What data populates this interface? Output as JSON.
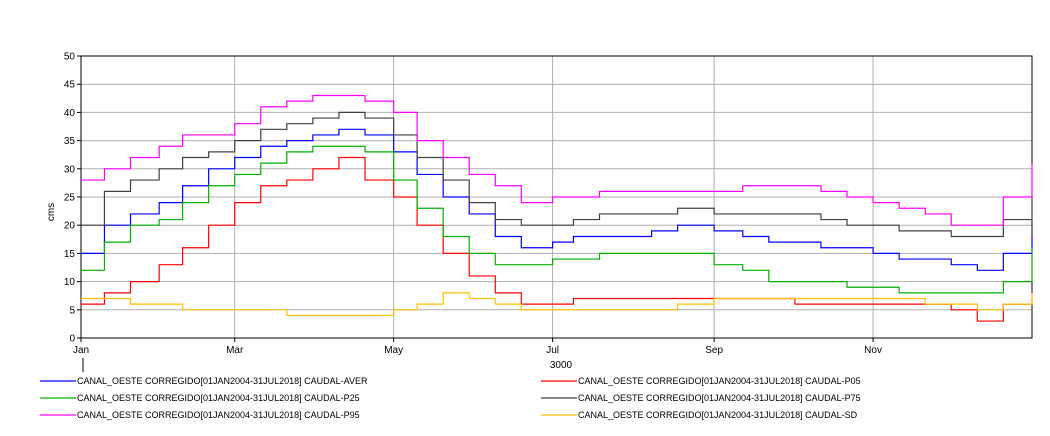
{
  "chart_data": {
    "type": "line",
    "ylabel": "cms",
    "xlabel": "",
    "year_label": "3000",
    "ylim": [
      0,
      50
    ],
    "yticks": [
      0,
      5,
      10,
      15,
      20,
      25,
      30,
      35,
      40,
      45,
      50
    ],
    "xlim": [
      1,
      366
    ],
    "xticks": [
      {
        "label": "Jan",
        "day": 1
      },
      {
        "label": "Mar",
        "day": 60
      },
      {
        "label": "May",
        "day": 121
      },
      {
        "label": "Jul",
        "day": 182
      },
      {
        "label": "Sep",
        "day": 244
      },
      {
        "label": "Nov",
        "day": 305
      }
    ],
    "grid": true,
    "legend_position": "bottom",
    "series": [
      {
        "name": "CANAL_OESTE CORREGIDO[01JAN2004-31JUL2018] CAUDAL-AVER",
        "color": "#0000ff",
        "x": [
          1,
          10,
          20,
          31,
          40,
          50,
          60,
          70,
          80,
          90,
          100,
          110,
          121,
          130,
          140,
          150,
          160,
          170,
          182,
          190,
          200,
          210,
          220,
          230,
          244,
          255,
          265,
          275,
          285,
          295,
          305,
          315,
          325,
          335,
          345,
          355,
          366
        ],
        "y": [
          15,
          20,
          22,
          24,
          27,
          30,
          32,
          34,
          35,
          36,
          37,
          36,
          33,
          29,
          25,
          22,
          18,
          16,
          17,
          18,
          18,
          18,
          19,
          20,
          19,
          18,
          17,
          17,
          16,
          16,
          15,
          14,
          14,
          13,
          12,
          15,
          18
        ]
      },
      {
        "name": "CANAL_OESTE CORREGIDO[01JAN2004-31JUL2018] CAUDAL-P05",
        "color": "#ff0000",
        "x": [
          1,
          10,
          20,
          31,
          40,
          50,
          60,
          70,
          80,
          90,
          100,
          110,
          121,
          130,
          140,
          150,
          160,
          170,
          182,
          190,
          200,
          210,
          220,
          230,
          244,
          255,
          265,
          275,
          285,
          295,
          305,
          315,
          325,
          335,
          345,
          355,
          366
        ],
        "y": [
          6,
          8,
          10,
          13,
          16,
          20,
          24,
          27,
          28,
          30,
          32,
          28,
          25,
          20,
          15,
          11,
          8,
          6,
          6,
          7,
          7,
          7,
          7,
          7,
          7,
          7,
          7,
          6,
          6,
          6,
          6,
          6,
          6,
          5,
          3,
          6,
          7
        ]
      },
      {
        "name": "CANAL_OESTE CORREGIDO[01JAN2004-31JUL2018] CAUDAL-P25",
        "color": "#00b000",
        "x": [
          1,
          10,
          20,
          31,
          40,
          50,
          60,
          70,
          80,
          90,
          100,
          110,
          121,
          130,
          140,
          150,
          160,
          170,
          182,
          190,
          200,
          210,
          220,
          230,
          244,
          255,
          265,
          275,
          285,
          295,
          305,
          315,
          325,
          335,
          345,
          355,
          366
        ],
        "y": [
          12,
          17,
          20,
          21,
          24,
          27,
          29,
          31,
          33,
          34,
          34,
          33,
          28,
          23,
          18,
          15,
          13,
          13,
          14,
          14,
          15,
          15,
          15,
          15,
          13,
          12,
          10,
          10,
          10,
          9,
          9,
          8,
          8,
          8,
          8,
          10,
          16
        ]
      },
      {
        "name": "CANAL_OESTE CORREGIDO[01JAN2004-31JUL2018] CAUDAL-P75",
        "color": "#404040",
        "x": [
          1,
          10,
          20,
          31,
          40,
          50,
          60,
          70,
          80,
          90,
          100,
          110,
          121,
          130,
          140,
          150,
          160,
          170,
          182,
          190,
          200,
          210,
          220,
          230,
          244,
          255,
          265,
          275,
          285,
          295,
          305,
          315,
          325,
          335,
          345,
          355,
          366
        ],
        "y": [
          20,
          26,
          28,
          30,
          32,
          33,
          35,
          37,
          38,
          39,
          40,
          39,
          36,
          32,
          28,
          24,
          21,
          20,
          20,
          21,
          22,
          22,
          22,
          23,
          22,
          22,
          22,
          22,
          21,
          20,
          20,
          19,
          19,
          18,
          18,
          21,
          25
        ]
      },
      {
        "name": "CANAL_OESTE CORREGIDO[01JAN2004-31JUL2018] CAUDAL-P95",
        "color": "#ff00ff",
        "x": [
          1,
          10,
          20,
          31,
          40,
          50,
          60,
          70,
          80,
          90,
          100,
          110,
          121,
          130,
          140,
          150,
          160,
          170,
          182,
          190,
          200,
          210,
          220,
          230,
          244,
          255,
          265,
          275,
          285,
          295,
          305,
          315,
          325,
          335,
          345,
          355,
          366
        ],
        "y": [
          28,
          30,
          32,
          34,
          36,
          36,
          38,
          41,
          42,
          43,
          43,
          42,
          40,
          35,
          32,
          29,
          27,
          24,
          25,
          25,
          26,
          26,
          26,
          26,
          26,
          27,
          27,
          27,
          26,
          25,
          24,
          23,
          22,
          20,
          20,
          25,
          31
        ]
      },
      {
        "name": "CANAL_OESTE CORREGIDO[01JAN2004-31JUL2018] CAUDAL-SD",
        "color": "#ffc000",
        "x": [
          1,
          10,
          20,
          31,
          40,
          50,
          60,
          70,
          80,
          90,
          100,
          110,
          121,
          130,
          140,
          150,
          160,
          170,
          182,
          190,
          200,
          210,
          220,
          230,
          244,
          255,
          265,
          275,
          285,
          295,
          305,
          315,
          325,
          335,
          345,
          355,
          366
        ],
        "y": [
          7,
          7,
          6,
          6,
          5,
          5,
          5,
          5,
          4,
          4,
          4,
          4,
          5,
          6,
          8,
          7,
          6,
          5,
          5,
          5,
          5,
          5,
          5,
          6,
          7,
          7,
          7,
          7,
          7,
          7,
          7,
          7,
          6,
          6,
          5,
          6,
          8
        ]
      }
    ]
  }
}
